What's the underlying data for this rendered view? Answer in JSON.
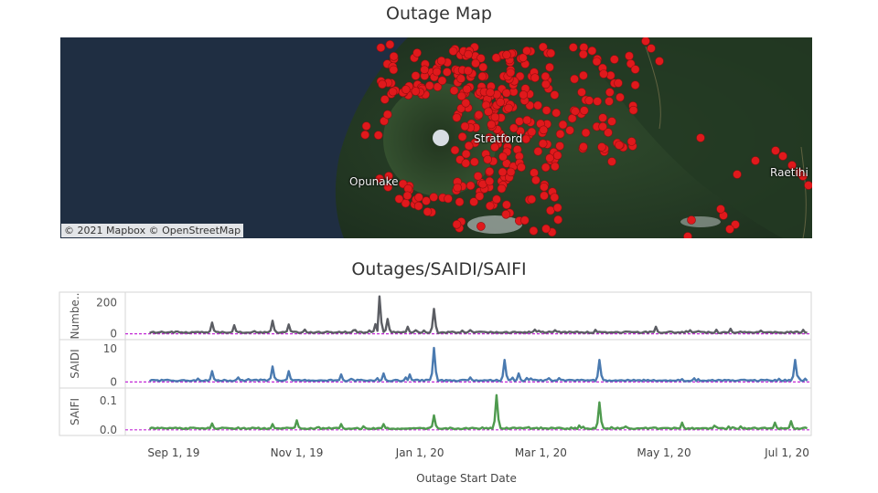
{
  "map": {
    "title": "Outage Map",
    "attribution": "© 2021 Mapbox  © OpenStreetMap",
    "place_labels": [
      "Stratford",
      "Opunake",
      "Raetihi"
    ],
    "marker_color": "#e0191c"
  },
  "chart_data": {
    "type": "line",
    "title": "Outages/SAIDI/SAIFI",
    "xlabel": "Outage Start Date",
    "x_ticks": [
      "Sep 1, 19",
      "Nov 1, 19",
      "Jan 1, 20",
      "Mar 1, 20",
      "May 1, 20",
      "Jul 1, 20"
    ],
    "x_range": [
      "2019-08-08",
      "2020-07-13"
    ],
    "grid": false,
    "panels": [
      {
        "name": "Number of Outages",
        "ylabel": "Numbe..",
        "y_ticks": [
          "200",
          "0"
        ],
        "ylim": [
          -20,
          250
        ],
        "color": "#5b5d63",
        "reference_line": 0,
        "spikes": [
          {
            "x": "2019-09-20",
            "value": 72
          },
          {
            "x": "2019-10-01",
            "value": 55
          },
          {
            "x": "2019-10-20",
            "value": 84
          },
          {
            "x": "2019-10-28",
            "value": 60
          },
          {
            "x": "2019-12-10",
            "value": 62
          },
          {
            "x": "2019-12-12",
            "value": 240
          },
          {
            "x": "2019-12-16",
            "value": 95
          },
          {
            "x": "2019-12-26",
            "value": 45
          },
          {
            "x": "2020-01-08",
            "value": 160
          },
          {
            "x": "2020-04-27",
            "value": 45
          },
          {
            "x": "2020-06-03",
            "value": 32
          },
          {
            "x": "2020-07-09",
            "value": 25
          }
        ]
      },
      {
        "name": "SAIDI",
        "ylabel": "SAIDI",
        "y_ticks": [
          "10",
          "0"
        ],
        "ylim": [
          -1,
          12
        ],
        "color": "#4a7ab0",
        "reference_line": 0,
        "spikes": [
          {
            "x": "2019-09-20",
            "value": 3.3
          },
          {
            "x": "2019-10-20",
            "value": 4.7
          },
          {
            "x": "2019-10-28",
            "value": 3.3
          },
          {
            "x": "2019-11-23",
            "value": 2.3
          },
          {
            "x": "2019-12-14",
            "value": 2.6
          },
          {
            "x": "2019-12-27",
            "value": 2.3
          },
          {
            "x": "2020-01-08",
            "value": 10.3
          },
          {
            "x": "2020-02-12",
            "value": 6.7
          },
          {
            "x": "2020-02-19",
            "value": 2.6
          },
          {
            "x": "2020-03-30",
            "value": 6.7
          },
          {
            "x": "2020-07-05",
            "value": 6.7
          }
        ]
      },
      {
        "name": "SAIFI",
        "ylabel": "SAIFI",
        "y_ticks": [
          "0.1",
          "0.0"
        ],
        "ylim": [
          -0.01,
          0.135
        ],
        "color": "#4e9a4e",
        "reference_line": 0,
        "spikes": [
          {
            "x": "2019-09-20",
            "value": 0.022
          },
          {
            "x": "2019-10-20",
            "value": 0.02
          },
          {
            "x": "2019-11-01",
            "value": 0.033
          },
          {
            "x": "2019-11-23",
            "value": 0.02
          },
          {
            "x": "2019-12-14",
            "value": 0.02
          },
          {
            "x": "2020-01-08",
            "value": 0.05
          },
          {
            "x": "2020-02-08",
            "value": 0.12
          },
          {
            "x": "2020-03-30",
            "value": 0.095
          },
          {
            "x": "2020-05-10",
            "value": 0.025
          },
          {
            "x": "2020-06-25",
            "value": 0.025
          },
          {
            "x": "2020-07-03",
            "value": 0.03
          }
        ]
      }
    ]
  }
}
